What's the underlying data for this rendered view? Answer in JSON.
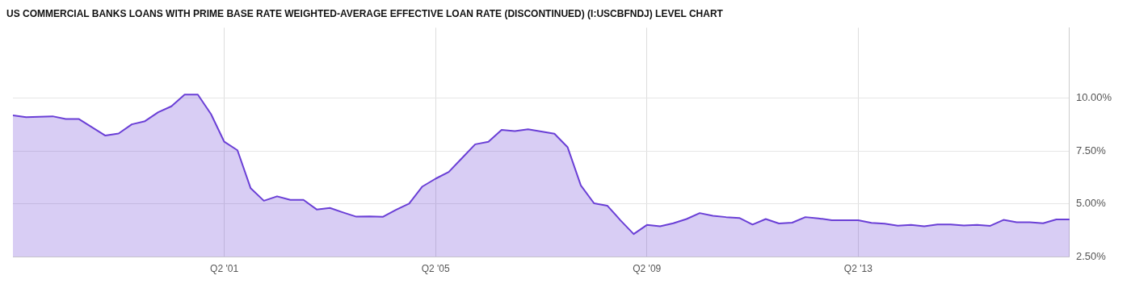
{
  "chart_data": {
    "type": "area",
    "title": "US COMMERCIAL BANKS LOANS WITH PRIME BASE RATE WEIGHTED-AVERAGE EFFECTIVE LOAN RATE (DISCONTINUED) (I:USCBFNDJ) LEVEL CHART",
    "categories": [
      null,
      null,
      null,
      null,
      null,
      null,
      null,
      null,
      null,
      null,
      null,
      null,
      null,
      null,
      null,
      null,
      "Q2 '01",
      null,
      null,
      null,
      null,
      null,
      null,
      null,
      null,
      null,
      null,
      null,
      null,
      null,
      null,
      null,
      "Q2 '05",
      null,
      null,
      null,
      null,
      null,
      null,
      null,
      null,
      null,
      null,
      null,
      null,
      null,
      null,
      null,
      "Q2 '09",
      null,
      null,
      null,
      null,
      null,
      null,
      null,
      null,
      null,
      null,
      null,
      null,
      null,
      null,
      null,
      "Q2 '13",
      null,
      null,
      null,
      null,
      null,
      null,
      null,
      null,
      null,
      null,
      null,
      null,
      null,
      null,
      null,
      null
    ],
    "series": [
      {
        "color": "#6a3fd6",
        "values": [
          9.17,
          9.09,
          9.11,
          9.13,
          9.0,
          9.0,
          8.61,
          8.22,
          8.32,
          8.75,
          8.9,
          9.32,
          9.6,
          10.15,
          10.15,
          9.23,
          7.93,
          7.53,
          5.74,
          5.15,
          5.36,
          5.19,
          5.19,
          4.74,
          4.81,
          4.6,
          4.4,
          4.41,
          4.39,
          4.72,
          5.02,
          5.82,
          6.19,
          6.51,
          7.16,
          7.81,
          7.93,
          8.49,
          8.43,
          8.52,
          8.41,
          8.31,
          7.67,
          5.87,
          5.03,
          4.92,
          4.23,
          3.58,
          4.01,
          3.95,
          4.09,
          4.29,
          4.57,
          4.44,
          4.38,
          4.34,
          4.03,
          4.29,
          4.08,
          4.12,
          4.38,
          4.32,
          4.23,
          4.23,
          4.23,
          4.11,
          4.07,
          3.98,
          4.01,
          3.95,
          4.03,
          4.03,
          3.99,
          4.01,
          3.97,
          4.25,
          4.14,
          4.14,
          4.09,
          4.27,
          4.27
        ]
      }
    ],
    "ylim": [
      2.5,
      13.3
    ],
    "yticks": [
      {
        "value": 2.5,
        "label": "2.50%"
      },
      {
        "value": 5,
        "label": "5.00%"
      },
      {
        "value": 7.5,
        "label": "7.50%"
      },
      {
        "value": 10,
        "label": "10.00%"
      }
    ],
    "grid": true,
    "legend": false
  }
}
